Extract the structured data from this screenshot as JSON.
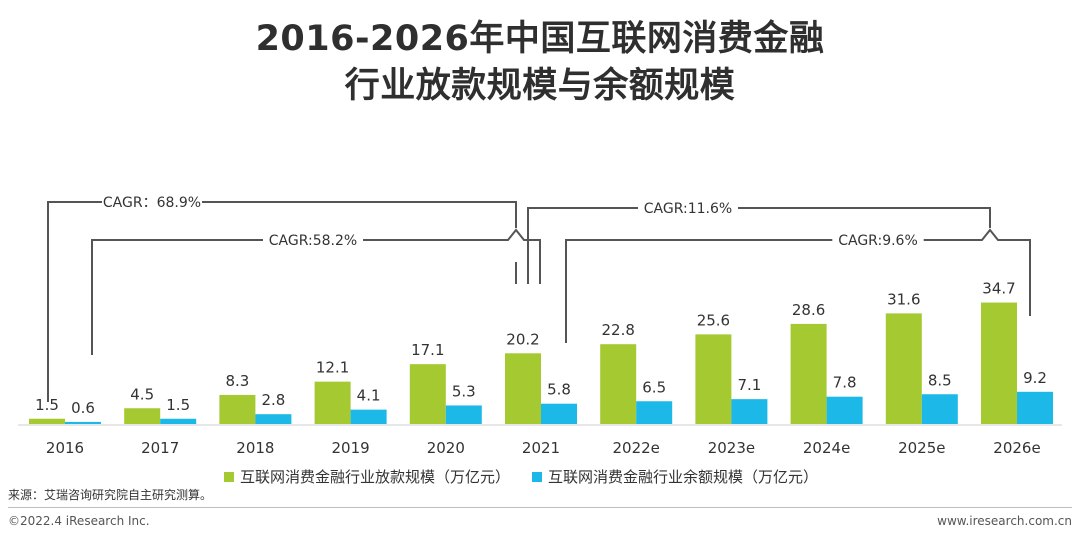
{
  "title_line1": "2016-2026年中国互联网消费金融",
  "title_line2": "行业放款规模与余额规模",
  "chart_data": {
    "type": "bar",
    "categories": [
      "2016",
      "2017",
      "2018",
      "2019",
      "2020",
      "2021",
      "2022e",
      "2023e",
      "2024e",
      "2025e",
      "2026e"
    ],
    "series": [
      {
        "name": "互联网消费金融行业放款规模（万亿元）",
        "color": "#a4c931",
        "values": [
          1.5,
          4.5,
          8.3,
          12.1,
          17.1,
          20.2,
          22.8,
          25.6,
          28.6,
          31.6,
          34.7
        ],
        "labels": [
          "1.5",
          "4.5",
          "8.3",
          "12.1",
          "17.1",
          "20.2",
          "22.8",
          "25.6",
          "28.6",
          "31.6",
          "34.7"
        ]
      },
      {
        "name": "互联网消费金融行业余额规模（万亿元）",
        "color": "#1cb8e8",
        "values": [
          0.6,
          1.5,
          2.8,
          4.1,
          5.3,
          5.8,
          6.5,
          7.1,
          7.8,
          8.5,
          9.2
        ],
        "labels": [
          "0.6",
          "1.5",
          "2.8",
          "4.1",
          "5.3",
          "5.8",
          "6.5",
          "7.1",
          "7.8",
          "8.5",
          "9.2"
        ]
      }
    ],
    "ylim": [
      0,
      40
    ],
    "grid": false,
    "legend_position": "bottom",
    "annotations": [
      {
        "label": "CAGR：68.9%",
        "from": "2016",
        "to": "2021",
        "series": "放款规模"
      },
      {
        "label": "CAGR:58.2%",
        "from": "2016",
        "to": "2021",
        "series": "余额规模"
      },
      {
        "label": "CAGR:11.6%",
        "from": "2021",
        "to": "2026e",
        "series": "放款规模"
      },
      {
        "label": "CAGR:9.6%",
        "from": "2021",
        "to": "2026e",
        "series": "余额规模"
      }
    ]
  },
  "source": "来源：艾瑞咨询研究院自主研究测算。",
  "footer_left": "©2022.4 iResearch Inc.",
  "footer_right": "www.iresearch.com.cn"
}
